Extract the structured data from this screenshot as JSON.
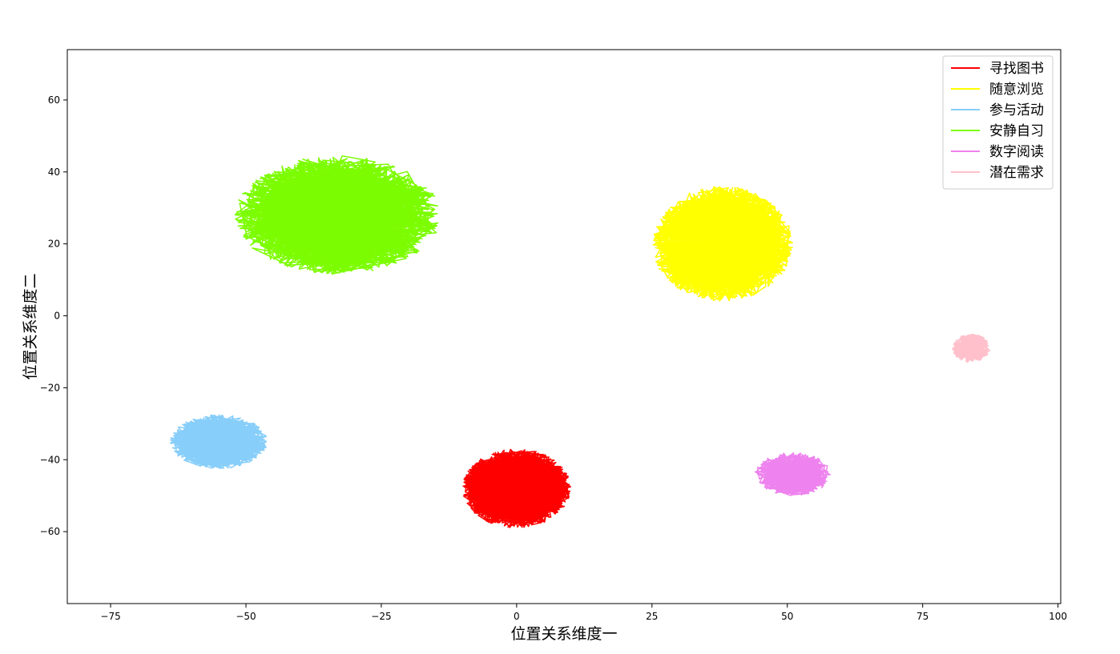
{
  "chart_data": {
    "type": "line",
    "title": "",
    "xlabel": "位置关系维度一",
    "ylabel": "位置关系维度二",
    "xlim": [
      -83,
      100.5
    ],
    "ylim": [
      -80,
      74
    ],
    "xticks": [
      -75,
      -50,
      -25,
      0,
      25,
      50,
      75,
      100
    ],
    "xtick_labels": [
      "−75",
      "−50",
      "−25",
      "0",
      "25",
      "50",
      "75",
      "100"
    ],
    "yticks": [
      -60,
      -40,
      -20,
      0,
      20,
      40,
      60
    ],
    "ytick_labels": [
      "−60",
      "−40",
      "−20",
      "0",
      "20",
      "40",
      "60"
    ],
    "grid": false,
    "legend_position": "top-right",
    "series": [
      {
        "name": "寻找图书",
        "color": "#ff0000",
        "center": [
          0,
          -48
        ],
        "spread": [
          20,
          22
        ],
        "n_points": 1500
      },
      {
        "name": "随意浏览",
        "color": "#ffff00",
        "center": [
          38,
          20
        ],
        "spread": [
          26,
          32
        ],
        "n_points": 1500
      },
      {
        "name": "参与活动",
        "color": "#87cefa",
        "center": [
          -55,
          -35
        ],
        "spread": [
          18,
          15
        ],
        "n_points": 800
      },
      {
        "name": "安静自习",
        "color": "#7cfc00",
        "center": [
          -33,
          28
        ],
        "spread": [
          38,
          33
        ],
        "n_points": 1500
      },
      {
        "name": "数字阅读",
        "color": "#ee82ee",
        "center": [
          51,
          -44
        ],
        "spread": [
          14,
          12
        ],
        "n_points": 500
      },
      {
        "name": "潜在需求",
        "color": "#ffc0cb",
        "center": [
          84,
          -9
        ],
        "spread": [
          7,
          8
        ],
        "n_points": 300
      }
    ]
  }
}
